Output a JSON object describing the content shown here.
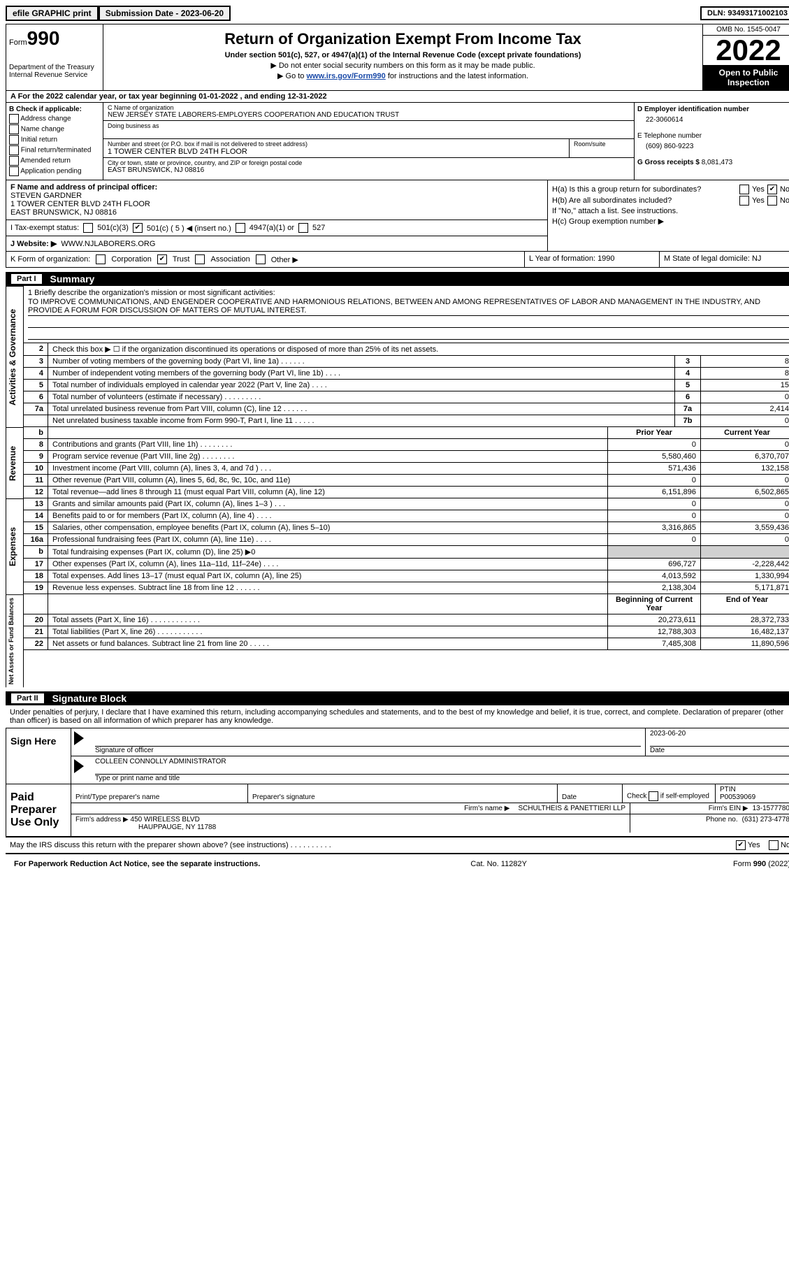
{
  "top": {
    "efile": "efile GRAPHIC print",
    "submission": "Submission Date - 2023-06-20",
    "dln": "DLN: 93493171002103"
  },
  "header": {
    "form_word": "Form",
    "form_num": "990",
    "dept": "Department of the Treasury\nInternal Revenue Service",
    "title": "Return of Organization Exempt From Income Tax",
    "subtitle": "Under section 501(c), 527, or 4947(a)(1) of the Internal Revenue Code (except private foundations)",
    "note1": "▶ Do not enter social security numbers on this form as it may be made public.",
    "note2_pre": "▶ Go to ",
    "note2_link": "www.irs.gov/Form990",
    "note2_post": " for instructions and the latest information.",
    "omb": "OMB No. 1545-0047",
    "year": "2022",
    "open": "Open to Public Inspection"
  },
  "rowA": "A  For the 2022 calendar year, or tax year beginning 01-01-2022    , and ending 12-31-2022",
  "colB": {
    "title": "B Check if applicable:",
    "items": [
      "Address change",
      "Name change",
      "Initial return",
      "Final return/terminated",
      "Amended return",
      "Application pending"
    ]
  },
  "colC": {
    "name_label": "C Name of organization",
    "name": "NEW JERSEY STATE LABORERS-EMPLOYERS COOPERATION AND EDUCATION TRUST",
    "dba_label": "Doing business as",
    "addr_label": "Number and street (or P.O. box if mail is not delivered to street address)",
    "room_label": "Room/suite",
    "addr": "1 TOWER CENTER BLVD 24TH FLOOR",
    "city_label": "City or town, state or province, country, and ZIP or foreign postal code",
    "city": "EAST BRUNSWICK, NJ  08816"
  },
  "colD": {
    "ein_label": "D Employer identification number",
    "ein": "22-3060614",
    "phone_label": "E Telephone number",
    "phone": "(609) 860-9223",
    "gross_label": "G Gross receipts $",
    "gross": "8,081,473"
  },
  "rowF": {
    "label": "F  Name and address of principal officer:",
    "name": "STEVEN GARDNER",
    "addr1": "1 TOWER CENTER BLVD 24TH FLOOR",
    "addr2": "EAST BRUNSWICK, NJ  08816"
  },
  "rowH": {
    "ha": "H(a)  Is this a group return for subordinates?",
    "hb": "H(b)  Are all subordinates included?",
    "hb_note": "If \"No,\" attach a list. See instructions.",
    "hc": "H(c)  Group exemption number ▶",
    "yes": "Yes",
    "no": "No"
  },
  "rowI": {
    "label": "I    Tax-exempt status:",
    "c3": "501(c)(3)",
    "c": "501(c) ( 5 ) ◀ (insert no.)",
    "a1": "4947(a)(1) or",
    "s527": "527"
  },
  "rowJ": {
    "label": "J   Website: ▶",
    "value": "WWW.NJLABORERS.ORG"
  },
  "rowK": {
    "label": "K Form of organization:",
    "corp": "Corporation",
    "trust": "Trust",
    "assoc": "Association",
    "other": "Other ▶"
  },
  "rowL": {
    "label": "L Year of formation:",
    "value": "1990"
  },
  "rowM": {
    "label": "M State of legal domicile:",
    "value": "NJ"
  },
  "part1": {
    "num": "Part I",
    "title": "Summary"
  },
  "mission": {
    "label": "1   Briefly describe the organization's mission or most significant activities:",
    "text": "TO IMPROVE COMMUNICATIONS, AND ENGENDER COOPERATIVE AND HARMONIOUS RELATIONS, BETWEEN AND AMONG REPRESENTATIVES OF LABOR AND MANAGEMENT IN THE INDUSTRY, AND PROVIDE A FORUM FOR DISCUSSION OF MATTERS OF MUTUAL INTEREST."
  },
  "lines": {
    "l2": "Check this box ▶ ☐  if the organization discontinued its operations or disposed of more than 25% of its net assets.",
    "headers": {
      "prior": "Prior Year",
      "current": "Current Year",
      "begin": "Beginning of Current Year",
      "end": "End of Year"
    },
    "rows": [
      {
        "n": "3",
        "d": "Number of voting members of the governing body (Part VI, line 1a)  .   .   .   .   .   .",
        "b": "3",
        "v": "8"
      },
      {
        "n": "4",
        "d": "Number of independent voting members of the governing body (Part VI, line 1b)   .   .   .   .",
        "b": "4",
        "v": "8"
      },
      {
        "n": "5",
        "d": "Total number of individuals employed in calendar year 2022 (Part V, line 2a)   .   .   .   .",
        "b": "5",
        "v": "15"
      },
      {
        "n": "6",
        "d": "Total number of volunteers (estimate if necessary)    .    .    .    .    .    .    .    .    .",
        "b": "6",
        "v": "0"
      },
      {
        "n": "7a",
        "d": "Total unrelated business revenue from Part VIII, column (C), line 12   .   .   .   .   .   .",
        "b": "7a",
        "v": "2,414"
      },
      {
        "n": "",
        "d": "Net unrelated business taxable income from Form 990-T, Part I, line 11   .   .   .   .   .",
        "b": "7b",
        "v": "0"
      }
    ],
    "revenue": [
      {
        "n": "8",
        "d": "Contributions and grants (Part VIII, line 1h)   .   .   .   .   .   .   .   .",
        "p": "0",
        "c": "0"
      },
      {
        "n": "9",
        "d": "Program service revenue (Part VIII, line 2g)   .   .   .   .   .   .   .   .",
        "p": "5,580,460",
        "c": "6,370,707"
      },
      {
        "n": "10",
        "d": "Investment income (Part VIII, column (A), lines 3, 4, and 7d )   .   .   .",
        "p": "571,436",
        "c": "132,158"
      },
      {
        "n": "11",
        "d": "Other revenue (Part VIII, column (A), lines 5, 6d, 8c, 9c, 10c, and 11e)",
        "p": "0",
        "c": "0"
      },
      {
        "n": "12",
        "d": "Total revenue—add lines 8 through 11 (must equal Part VIII, column (A), line 12)",
        "p": "6,151,896",
        "c": "6,502,865"
      }
    ],
    "expenses": [
      {
        "n": "13",
        "d": "Grants and similar amounts paid (Part IX, column (A), lines 1–3 )   .   .   .",
        "p": "0",
        "c": "0"
      },
      {
        "n": "14",
        "d": "Benefits paid to or for members (Part IX, column (A), line 4)   .   .   .   .",
        "p": "0",
        "c": "0"
      },
      {
        "n": "15",
        "d": "Salaries, other compensation, employee benefits (Part IX, column (A), lines 5–10)",
        "p": "3,316,865",
        "c": "3,559,436"
      },
      {
        "n": "16a",
        "d": "Professional fundraising fees (Part IX, column (A), line 11e)   .   .   .   .",
        "p": "0",
        "c": "0"
      },
      {
        "n": "b",
        "d": "Total fundraising expenses (Part IX, column (D), line 25) ▶0",
        "p": "",
        "c": "",
        "shade": true
      },
      {
        "n": "17",
        "d": "Other expenses (Part IX, column (A), lines 11a–11d, 11f–24e)   .   .   .   .",
        "p": "696,727",
        "c": "-2,228,442"
      },
      {
        "n": "18",
        "d": "Total expenses. Add lines 13–17 (must equal Part IX, column (A), line 25)",
        "p": "4,013,592",
        "c": "1,330,994"
      },
      {
        "n": "19",
        "d": "Revenue less expenses. Subtract line 18 from line 12   .   .   .   .   .   .",
        "p": "2,138,304",
        "c": "5,171,871"
      }
    ],
    "netassets": [
      {
        "n": "20",
        "d": "Total assets (Part X, line 16)   .   .   .   .   .   .   .   .   .   .   .   .",
        "p": "20,273,611",
        "c": "28,372,733"
      },
      {
        "n": "21",
        "d": "Total liabilities (Part X, line 26)   .   .   .   .   .   .   .   .   .   .   .",
        "p": "12,788,303",
        "c": "16,482,137"
      },
      {
        "n": "22",
        "d": "Net assets or fund balances. Subtract line 21 from line 20   .   .   .   .   .",
        "p": "7,485,308",
        "c": "11,890,596"
      }
    ]
  },
  "sides": {
    "ag": "Activities & Governance",
    "rev": "Revenue",
    "exp": "Expenses",
    "na": "Net Assets or Fund Balances"
  },
  "part2": {
    "num": "Part II",
    "title": "Signature Block"
  },
  "sigintro": "Under penalties of perjury, I declare that I have examined this return, including accompanying schedules and statements, and to the best of my knowledge and belief, it is true, correct, and complete. Declaration of preparer (other than officer) is based on all information of which preparer has any knowledge.",
  "sign": {
    "side": "Sign Here",
    "sig_label": "Signature of officer",
    "date": "2023-06-20",
    "date_label": "Date",
    "name": "COLLEEN CONNOLLY  ADMINISTRATOR",
    "name_label": "Type or print name and title"
  },
  "preparer": {
    "side": "Paid Preparer Use Only",
    "h1": "Print/Type preparer's name",
    "h2": "Preparer's signature",
    "h3": "Date",
    "h4_a": "Check",
    "h4_b": "if self-employed",
    "h5": "PTIN",
    "ptin": "P00539069",
    "firm_label": "Firm's name     ▶",
    "firm": "SCHULTHEIS & PANETTIERI LLP",
    "ein_label": "Firm's EIN ▶",
    "ein": "13-1577780",
    "addr_label": "Firm's address ▶",
    "addr1": "450 WIRELESS BLVD",
    "addr2": "HAUPPAUGE, NY  11788",
    "phone_label": "Phone no.",
    "phone": "(631) 273-4778"
  },
  "footer": {
    "q": "May the IRS discuss this return with the preparer shown above? (see instructions)   .    .    .    .    .    .    .    .    .    .",
    "yes": "Yes",
    "no": "No",
    "pra": "For Paperwork Reduction Act Notice, see the separate instructions.",
    "cat": "Cat. No. 11282Y",
    "form": "Form 990 (2022)"
  }
}
